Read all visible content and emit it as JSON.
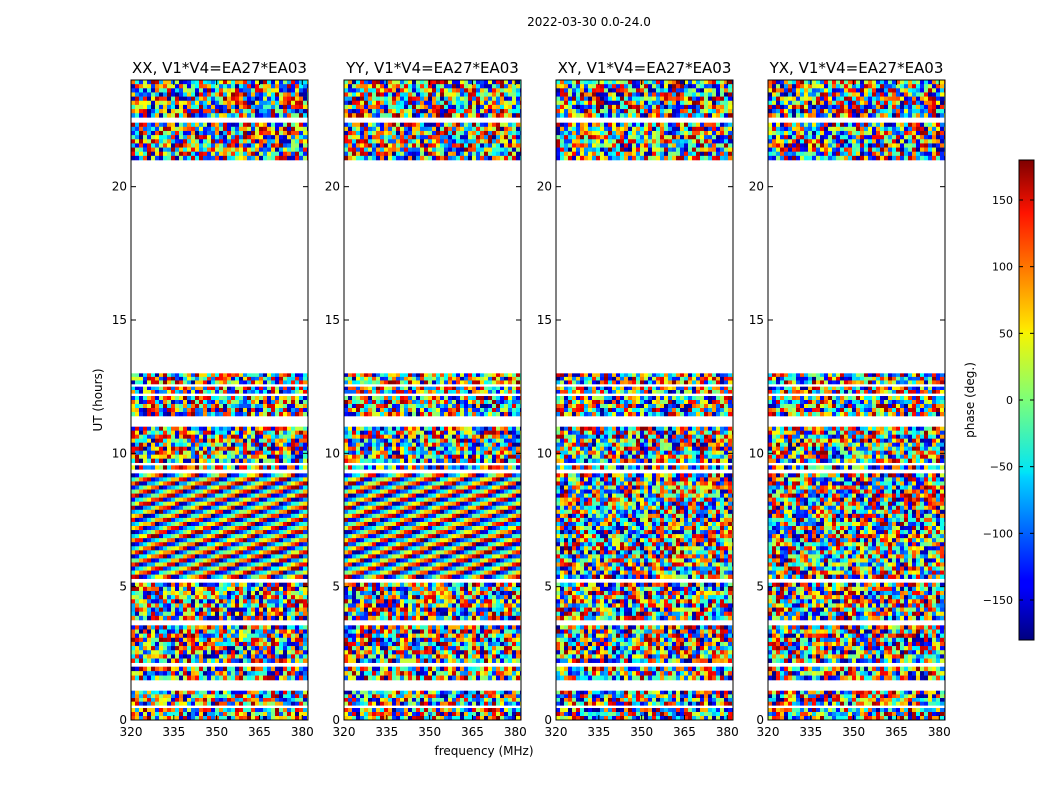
{
  "figure": {
    "suptitle": "2022-03-30 0.0-24.0",
    "xlabel": "frequency (MHz)",
    "ylabel": "UT (hours)"
  },
  "chart_data": {
    "type": "heatmap",
    "title": "2022-03-30 0.0-24.0",
    "xlabel": "frequency (MHz)",
    "ylabel": "UT (hours)",
    "xlim": [
      320,
      382
    ],
    "ylim": [
      0,
      24
    ],
    "x_ticks": [
      320,
      335,
      350,
      365,
      380
    ],
    "y_ticks": [
      0,
      5,
      10,
      15,
      20
    ],
    "panels": [
      {
        "title": "XX, V1*V4=EA27*EA03",
        "polarization": "XX"
      },
      {
        "title": "YY, V1*V4=EA27*EA03",
        "polarization": "YY"
      },
      {
        "title": "XY, V1*V4=EA27*EA03",
        "polarization": "XY"
      },
      {
        "title": "YX, V1*V4=EA27*EA03",
        "polarization": "YX"
      }
    ],
    "data_bands_ut": [
      [
        0.0,
        0.45
      ],
      [
        0.55,
        1.1
      ],
      [
        1.5,
        2.0
      ],
      [
        2.15,
        3.55
      ],
      [
        3.75,
        5.15
      ],
      [
        5.3,
        9.25
      ],
      [
        9.4,
        9.55
      ],
      [
        9.65,
        11.0
      ],
      [
        11.4,
        12.15
      ],
      [
        12.25,
        12.5
      ],
      [
        12.6,
        13.0
      ],
      [
        21.0,
        22.4
      ],
      [
        22.6,
        24.0
      ]
    ],
    "colorbar": {
      "label": "phase (deg.)",
      "min": -180,
      "max": 180,
      "ticks": [
        -150,
        -100,
        -50,
        0,
        50,
        100,
        150
      ],
      "colormap": "jet"
    }
  }
}
